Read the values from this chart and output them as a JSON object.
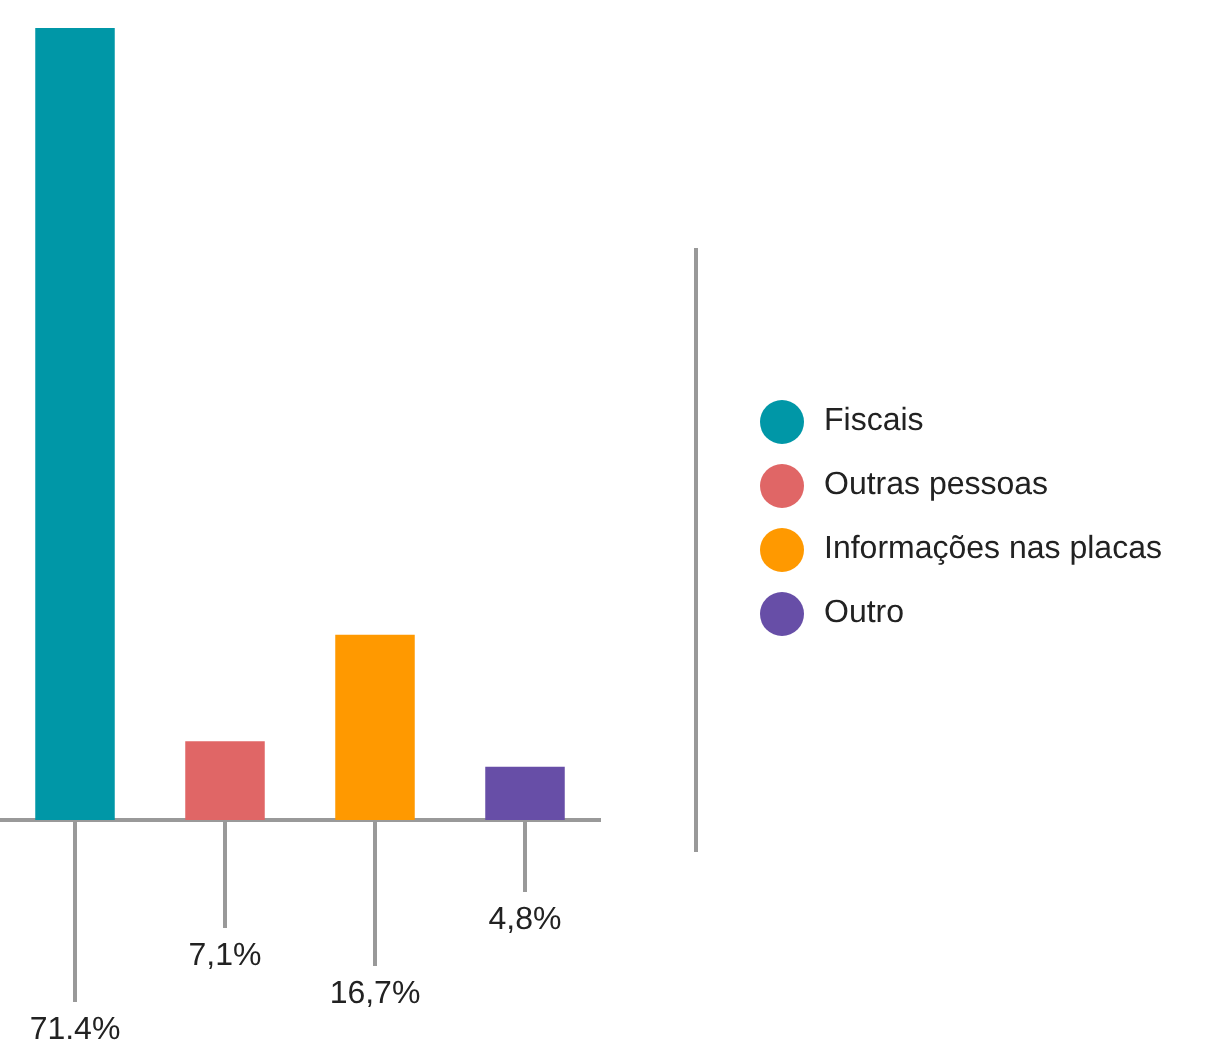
{
  "chart_data": {
    "type": "bar",
    "categories": [
      null,
      null,
      null,
      null
    ],
    "stacked": true,
    "series": [
      {
        "name": "Fiscais",
        "color": "#0097a7",
        "values": [
          71.4,
          null,
          null,
          null
        ],
        "value_labels": [
          "71.4%",
          null,
          null,
          null
        ]
      },
      {
        "name": "Outras pessoas",
        "color": "#e06666",
        "values": [
          null,
          7.1,
          null,
          null
        ],
        "value_labels": [
          null,
          "7,1%",
          null,
          null
        ]
      },
      {
        "name": "Informações nas placas",
        "color": "#ff9900",
        "values": [
          null,
          null,
          16.7,
          null
        ],
        "value_labels": [
          null,
          null,
          "16,7%",
          null
        ]
      },
      {
        "name": "Outro",
        "color": "#674ea7",
        "values": [
          null,
          null,
          null,
          4.8
        ],
        "value_labels": [
          null,
          null,
          null,
          "4,8%"
        ]
      }
    ],
    "legend": "right",
    "tick_labels": false,
    "grid": false
  }
}
